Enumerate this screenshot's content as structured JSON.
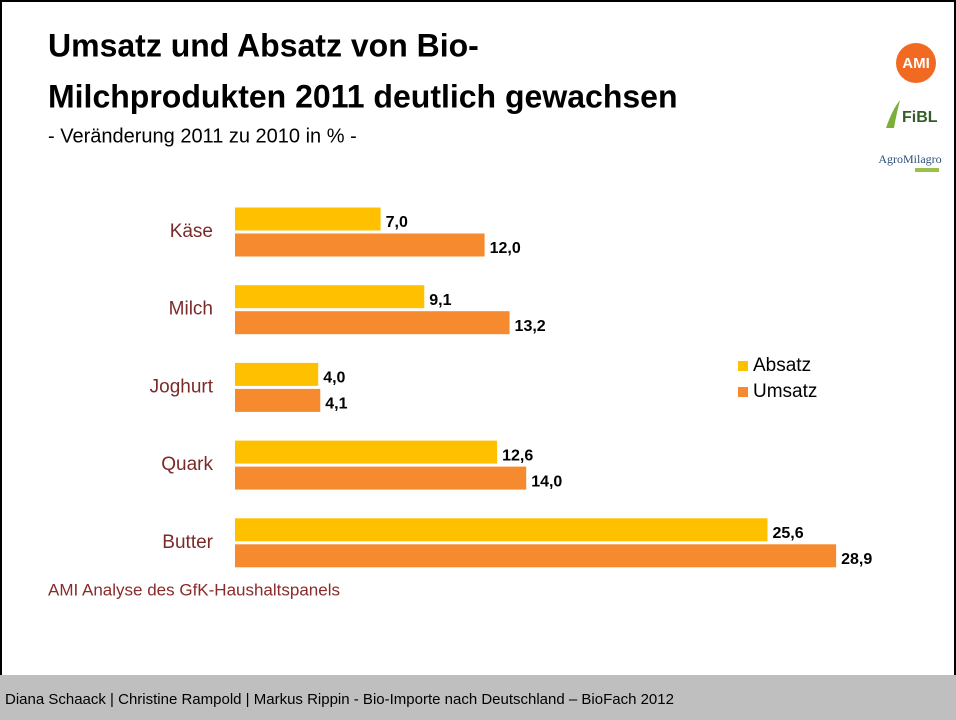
{
  "chart_data": {
    "type": "bar",
    "orientation": "horizontal",
    "title_lines": [
      "Umsatz und Absatz von Bio-",
      "Milchprodukten 2011 deutlich gewachsen"
    ],
    "subtitle": "- Veränderung 2011 zu 2010 in % -",
    "categories": [
      "Käse",
      "Milch",
      "Joghurt",
      "Quark",
      "Butter"
    ],
    "series": [
      {
        "name": "Absatz",
        "color": "#ffc000",
        "values": [
          7.0,
          9.1,
          4.0,
          12.6,
          25.6
        ],
        "value_labels": [
          "7,0",
          "9,1",
          "4,0",
          "12,6",
          "25,6"
        ]
      },
      {
        "name": "Umsatz",
        "color": "#f58a2e",
        "values": [
          12.0,
          13.2,
          4.1,
          14.0,
          28.9
        ],
        "value_labels": [
          "12,0",
          "13,2",
          "4,1",
          "14,0",
          "28,9"
        ]
      }
    ],
    "xlim": [
      0,
      30
    ],
    "legend": "right",
    "source": "AMI Analyse des GfK-Haushaltspanels"
  },
  "logos": [
    "AMI",
    "FiBL",
    "AgroMilagro"
  ],
  "footer": "Diana Schaack | Christine Rampold | Markus Rippin - Bio-Importe nach Deutschland – BioFach 2012"
}
